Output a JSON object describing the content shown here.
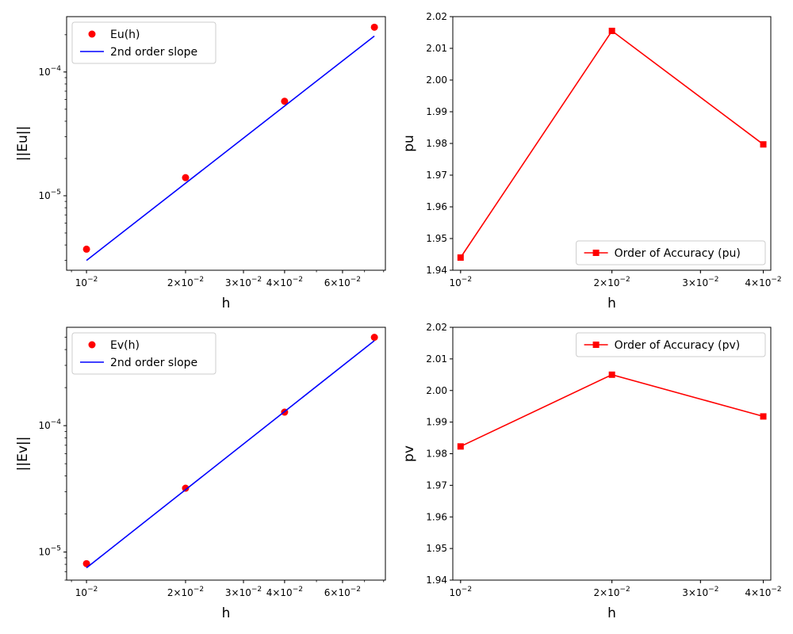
{
  "chart_data": [
    {
      "type": "scatter",
      "scale": "loglog",
      "xlabel": "h",
      "ylabel": "||Eu||",
      "xlim": [
        0.0087,
        0.081
      ],
      "ylim": [
        2.5e-06,
        0.00028
      ],
      "x_ticks": [
        {
          "value": 0.01,
          "base": "10",
          "exp": "−2",
          "coef": ""
        },
        {
          "value": 0.02,
          "base": "10",
          "exp": "−2",
          "coef": "2"
        },
        {
          "value": 0.03,
          "base": "10",
          "exp": "−2",
          "coef": "3"
        },
        {
          "value": 0.04,
          "base": "10",
          "exp": "−2",
          "coef": "4"
        },
        {
          "value": 0.06,
          "base": "10",
          "exp": "−2",
          "coef": "6"
        }
      ],
      "y_ticks": [
        {
          "value": 1e-05,
          "base": "10",
          "exp": "−5",
          "coef": ""
        },
        {
          "value": 0.0001,
          "base": "10",
          "exp": "−4",
          "coef": ""
        }
      ],
      "series": [
        {
          "name": "Eu(h)",
          "kind": "points",
          "color": "#ff0000",
          "x": [
            0.01,
            0.02,
            0.04,
            0.075
          ],
          "y": [
            3.7e-06,
            1.4e-05,
            5.8e-05,
            0.00023
          ]
        },
        {
          "name": "2nd order slope",
          "kind": "line",
          "color": "#0000ff",
          "x": [
            0.01,
            0.075
          ],
          "y": [
            3e-06,
            0.000195
          ]
        }
      ],
      "legend": "upper-left"
    },
    {
      "type": "line",
      "scale": "logx",
      "xlabel": "h",
      "ylabel": "pu",
      "xlim": [
        0.00965,
        0.0414
      ],
      "ylim": [
        1.94,
        2.02
      ],
      "x_ticks": [
        {
          "value": 0.01,
          "base": "10",
          "exp": "−2",
          "coef": ""
        },
        {
          "value": 0.02,
          "base": "10",
          "exp": "−2",
          "coef": "2"
        },
        {
          "value": 0.03,
          "base": "10",
          "exp": "−2",
          "coef": "3"
        },
        {
          "value": 0.04,
          "base": "10",
          "exp": "−2",
          "coef": "4"
        }
      ],
      "y_ticks": [
        "1.94",
        "1.95",
        "1.96",
        "1.97",
        "1.98",
        "1.99",
        "2.00",
        "2.01",
        "2.02"
      ],
      "series": [
        {
          "name": "Order of Accuracy (pu)",
          "kind": "line-square",
          "color": "#ff0000",
          "x": [
            0.01,
            0.02,
            0.04
          ],
          "y": [
            1.944,
            2.0155,
            1.9797
          ]
        }
      ],
      "legend": "lower-right"
    },
    {
      "type": "scatter",
      "scale": "loglog",
      "xlabel": "h",
      "ylabel": "||Ev||",
      "xlim": [
        0.0087,
        0.081
      ],
      "ylim": [
        6e-06,
        0.0006
      ],
      "x_ticks": [
        {
          "value": 0.01,
          "base": "10",
          "exp": "−2",
          "coef": ""
        },
        {
          "value": 0.02,
          "base": "10",
          "exp": "−2",
          "coef": "2"
        },
        {
          "value": 0.03,
          "base": "10",
          "exp": "−2",
          "coef": "3"
        },
        {
          "value": 0.04,
          "base": "10",
          "exp": "−2",
          "coef": "4"
        },
        {
          "value": 0.06,
          "base": "10",
          "exp": "−2",
          "coef": "6"
        }
      ],
      "y_ticks": [
        {
          "value": 1e-05,
          "base": "10",
          "exp": "−5",
          "coef": ""
        },
        {
          "value": 0.0001,
          "base": "10",
          "exp": "−4",
          "coef": ""
        }
      ],
      "series": [
        {
          "name": "Ev(h)",
          "kind": "points",
          "color": "#ff0000",
          "x": [
            0.01,
            0.02,
            0.04,
            0.075
          ],
          "y": [
            8.1e-06,
            3.2e-05,
            0.000128,
            0.0005
          ]
        },
        {
          "name": "2nd order slope",
          "kind": "line",
          "color": "#0000ff",
          "x": [
            0.01,
            0.075
          ],
          "y": [
            7.5e-06,
            0.00047
          ]
        }
      ],
      "legend": "upper-left"
    },
    {
      "type": "line",
      "scale": "logx",
      "xlabel": "h",
      "ylabel": "pv",
      "xlim": [
        0.00965,
        0.0414
      ],
      "ylim": [
        1.94,
        2.02
      ],
      "x_ticks": [
        {
          "value": 0.01,
          "base": "10",
          "exp": "−2",
          "coef": ""
        },
        {
          "value": 0.02,
          "base": "10",
          "exp": "−2",
          "coef": "2"
        },
        {
          "value": 0.03,
          "base": "10",
          "exp": "−2",
          "coef": "3"
        },
        {
          "value": 0.04,
          "base": "10",
          "exp": "−2",
          "coef": "4"
        }
      ],
      "y_ticks": [
        "1.94",
        "1.95",
        "1.96",
        "1.97",
        "1.98",
        "1.99",
        "2.00",
        "2.01",
        "2.02"
      ],
      "series": [
        {
          "name": "Order of Accuracy (pv)",
          "kind": "line-square",
          "color": "#ff0000",
          "x": [
            0.01,
            0.02,
            0.04
          ],
          "y": [
            1.9823,
            2.005,
            1.9918
          ]
        }
      ],
      "legend": "upper-right"
    }
  ]
}
